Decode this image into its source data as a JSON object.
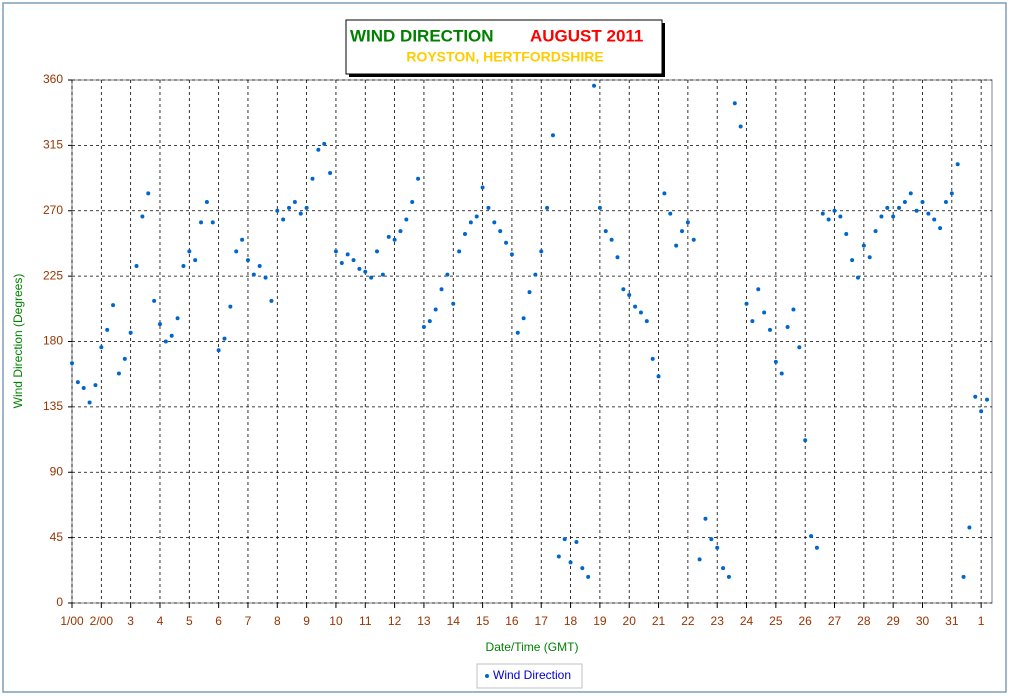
{
  "chart_data": {
    "type": "scatter",
    "title": "WIND DIRECTION",
    "title_date": "AUGUST 2011",
    "subtitle": "ROYSTON, HERTFORDSHIRE",
    "x_label": "Date/Time (GMT)",
    "y_label": "Wind Direction (Degrees)",
    "xlim": [
      1,
      32.37
    ],
    "ylim": [
      0,
      360
    ],
    "xticks": [
      {
        "value": 1,
        "label": "1/00"
      },
      {
        "value": 2,
        "label": "2/00"
      },
      3,
      4,
      5,
      6,
      7,
      8,
      9,
      10,
      11,
      12,
      13,
      14,
      15,
      16,
      17,
      18,
      19,
      20,
      21,
      22,
      23,
      24,
      25,
      26,
      27,
      28,
      29,
      30,
      31,
      {
        "value": 32,
        "label": "1"
      }
    ],
    "yticks": [
      0,
      45,
      90,
      135,
      180,
      225,
      270,
      315,
      360
    ],
    "grid": true,
    "series": [
      {
        "name": "Wind Direction",
        "color": "#0066cc",
        "x": [
          1,
          1.2,
          1.4,
          1.6,
          1.8,
          2,
          2.2,
          2.4,
          2.6,
          2.8,
          3,
          3.2,
          3.4,
          3.6,
          3.8,
          4,
          4.2,
          4.4,
          4.6,
          4.8,
          5,
          5.2,
          5.4,
          5.6,
          5.8,
          6,
          6.2,
          6.4,
          6.6,
          6.8,
          7,
          7.2,
          7.4,
          7.6,
          7.8,
          8,
          8.2,
          8.4,
          8.6,
          8.8,
          9,
          9.2,
          9.4,
          9.6,
          9.8,
          10,
          10.2,
          10.4,
          10.6,
          10.8,
          11,
          11.2,
          11.4,
          11.6,
          11.8,
          12,
          12.2,
          12.4,
          12.6,
          12.8,
          13,
          13.2,
          13.4,
          13.6,
          13.8,
          14,
          14.2,
          14.4,
          14.6,
          14.8,
          15,
          15.2,
          15.4,
          15.6,
          15.8,
          16,
          16.2,
          16.4,
          16.6,
          16.8,
          17,
          17.2,
          17.4,
          17.6,
          17.8,
          18,
          18.2,
          18.4,
          18.6,
          18.8,
          19,
          19.2,
          19.4,
          19.6,
          19.8,
          20,
          20.2,
          20.4,
          20.6,
          20.8,
          21,
          21.2,
          21.4,
          21.6,
          21.8,
          22,
          22.2,
          22.4,
          22.6,
          22.8,
          23,
          23.2,
          23.4,
          23.6,
          23.8,
          24,
          24.2,
          24.4,
          24.6,
          24.8,
          25,
          25.2,
          25.4,
          25.6,
          25.8,
          26,
          26.2,
          26.4,
          26.6,
          26.8,
          27,
          27.2,
          27.4,
          27.6,
          27.8,
          28,
          28.2,
          28.4,
          28.6,
          28.8,
          29,
          29.2,
          29.4,
          29.6,
          29.8,
          30,
          30.2,
          30.4,
          30.6,
          30.8,
          31,
          31.2,
          31.4,
          31.6,
          31.8,
          32,
          32.2
        ],
        "values": [
          165,
          152,
          148,
          138,
          150,
          176,
          188,
          205,
          158,
          168,
          186,
          232,
          266,
          282,
          208,
          192,
          180,
          184,
          196,
          232,
          242,
          236,
          262,
          276,
          262,
          174,
          182,
          204,
          242,
          250,
          236,
          226,
          232,
          224,
          208,
          270,
          264,
          272,
          276,
          268,
          272,
          292,
          312,
          316,
          296,
          242,
          234,
          240,
          236,
          230,
          228,
          224,
          242,
          226,
          252,
          250,
          256,
          264,
          276,
          292,
          190,
          194,
          202,
          216,
          226,
          206,
          242,
          254,
          262,
          266,
          286,
          272,
          262,
          256,
          248,
          240,
          186,
          196,
          214,
          226,
          242,
          272,
          322,
          32,
          44,
          28,
          42,
          24,
          18,
          356,
          272,
          256,
          250,
          238,
          216,
          212,
          204,
          200,
          194,
          168,
          156,
          282,
          268,
          246,
          256,
          262,
          250,
          30,
          58,
          44,
          38,
          24,
          18,
          344,
          328,
          206,
          194,
          216,
          200,
          188,
          166,
          158,
          190,
          202,
          176,
          112,
          46,
          38,
          268,
          264,
          270,
          266,
          254,
          236,
          224,
          246,
          238,
          256,
          266,
          272,
          266,
          272,
          276,
          282,
          270,
          276,
          268,
          264,
          258,
          276,
          282,
          302,
          18,
          52,
          142,
          132,
          140
        ]
      }
    ]
  }
}
